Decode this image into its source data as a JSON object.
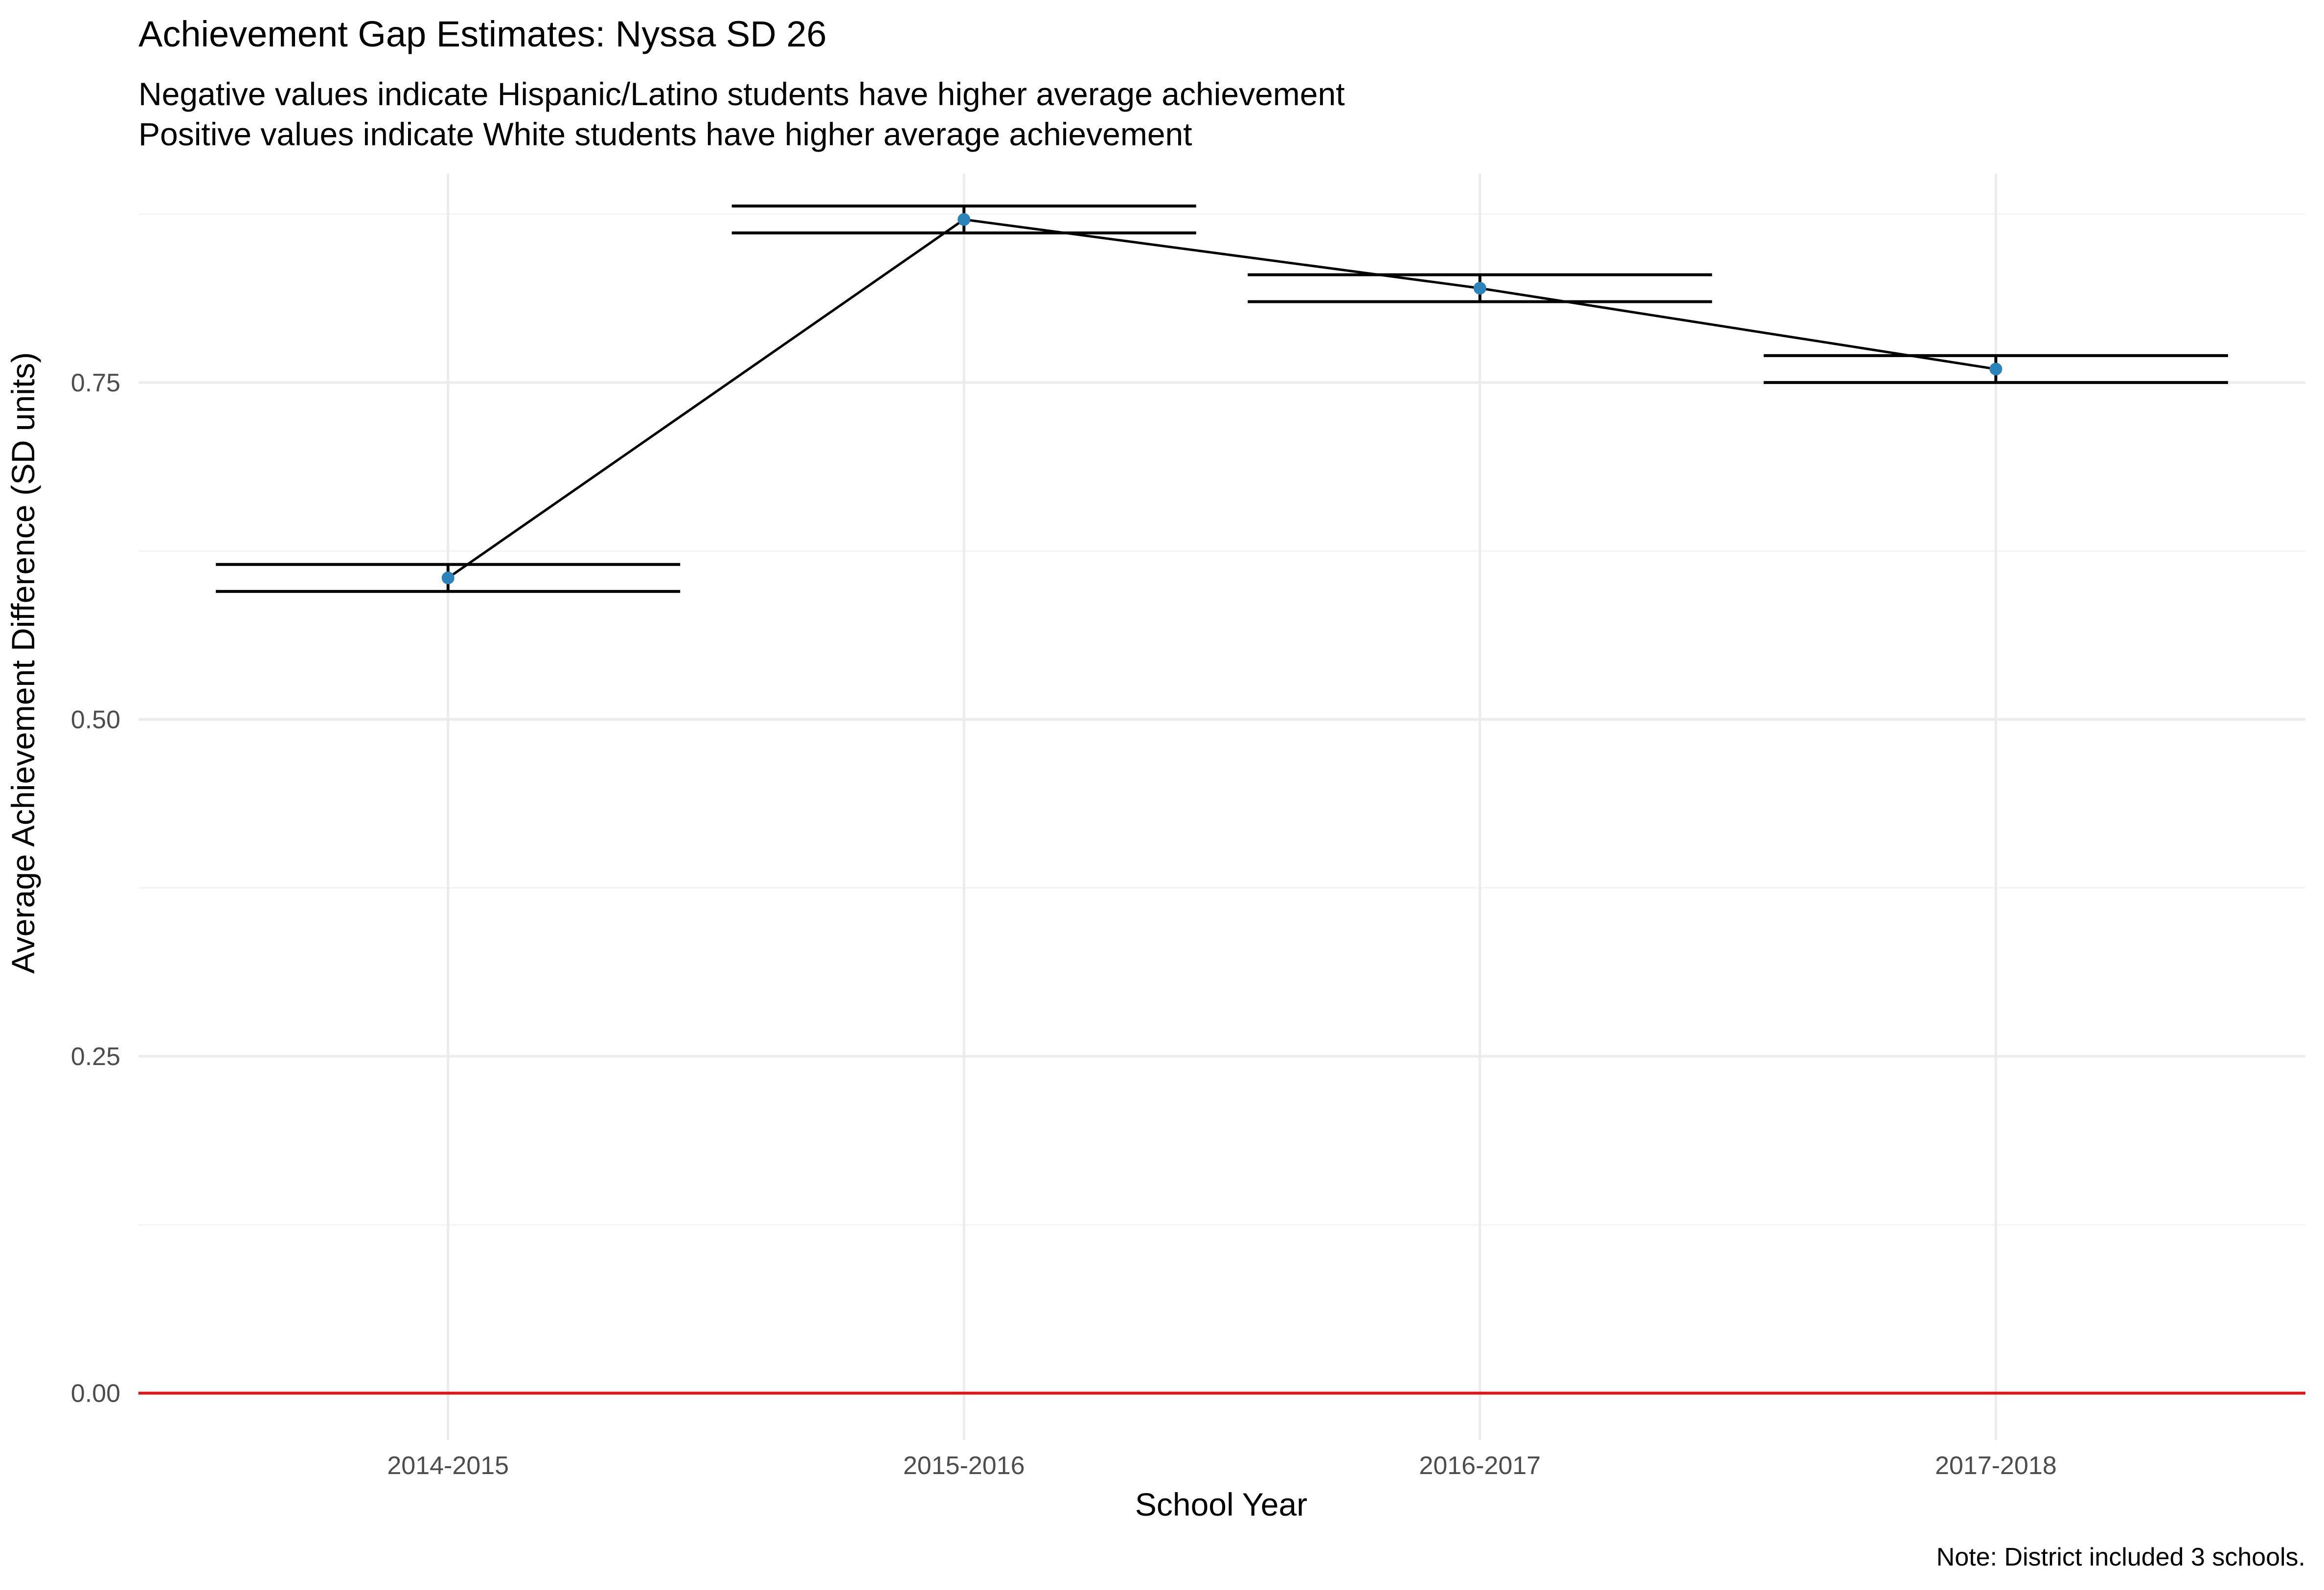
{
  "chart_data": {
    "type": "line",
    "title": "Achievement Gap Estimates: Nyssa SD 26",
    "subtitle": [
      "Negative values indicate Hispanic/Latino students have higher average achievement",
      "Positive values indicate White students have higher average achievement"
    ],
    "xlabel": "School Year",
    "ylabel": "Average Achievement Difference (SD units)",
    "caption": "Note: District included 3 schools.",
    "categories": [
      "2014-2015",
      "2015-2016",
      "2016-2017",
      "2017-2018"
    ],
    "series": [
      {
        "values": [
          0.605,
          0.871,
          0.82,
          0.76
        ],
        "ci_lower": [
          0.595,
          0.861,
          0.81,
          0.75
        ],
        "ci_upper": [
          0.615,
          0.881,
          0.83,
          0.77
        ]
      }
    ],
    "ylim": [
      -0.035,
      0.905
    ],
    "yticks": [
      0.0,
      0.25,
      0.5,
      0.75
    ],
    "ytick_labels": [
      "0.00",
      "0.25",
      "0.50",
      "0.75"
    ],
    "reference_line": {
      "y": 0.0,
      "color": "#d7191c"
    },
    "point_color": "#2b83ba",
    "line_color": "#000000",
    "grid": true,
    "legend": "none"
  }
}
